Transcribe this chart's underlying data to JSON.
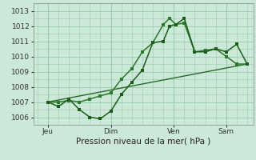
{
  "bg_color": "#cce8d8",
  "grid_color": "#99ccaa",
  "line_color1": "#1a5e1a",
  "line_color2": "#2a7a2a",
  "trend_color": "#2a6a2a",
  "title": "Pression niveau de la mer( hPa )",
  "ylim": [
    1005.5,
    1013.5
  ],
  "yticks": [
    1006,
    1007,
    1008,
    1009,
    1010,
    1011,
    1012,
    1013
  ],
  "xlim": [
    -0.2,
    10.3
  ],
  "xtick_labels": [
    "Jeu",
    "Dim",
    "Ven",
    "Sam"
  ],
  "xtick_positions": [
    0.5,
    3.5,
    6.5,
    9.0
  ],
  "vline_positions": [
    0.5,
    3.5,
    6.5,
    9.0
  ],
  "series1_x": [
    0.5,
    1.0,
    1.5,
    2.0,
    2.5,
    3.0,
    3.5,
    4.0,
    4.5,
    5.0,
    5.5,
    6.0,
    6.3,
    6.6,
    7.0,
    7.5,
    8.0,
    8.5,
    9.0,
    9.5,
    10.0
  ],
  "series1_y": [
    1007.0,
    1006.7,
    1007.2,
    1006.5,
    1006.0,
    1005.9,
    1006.4,
    1007.5,
    1008.3,
    1009.1,
    1010.9,
    1011.0,
    1012.0,
    1012.1,
    1012.5,
    1010.3,
    1010.3,
    1010.5,
    1010.3,
    1010.8,
    1009.5
  ],
  "series2_x": [
    0.5,
    1.0,
    1.5,
    2.0,
    2.5,
    3.0,
    3.5,
    4.0,
    4.5,
    5.0,
    5.5,
    6.0,
    6.3,
    6.6,
    7.0,
    7.5,
    8.0,
    8.5,
    9.0,
    9.5,
    10.0
  ],
  "series2_y": [
    1007.0,
    1007.0,
    1007.1,
    1007.0,
    1007.2,
    1007.4,
    1007.6,
    1008.5,
    1009.2,
    1010.3,
    1010.9,
    1012.1,
    1012.5,
    1012.1,
    1012.2,
    1010.3,
    1010.4,
    1010.5,
    1010.0,
    1009.5,
    1009.5
  ],
  "trend_x": [
    0.5,
    10.0
  ],
  "trend_y": [
    1007.0,
    1009.5
  ]
}
